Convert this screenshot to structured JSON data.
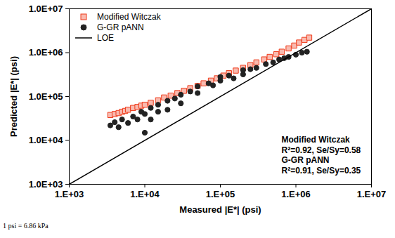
{
  "chart_data": {
    "type": "scatter",
    "xlabel": "Measured |E*| (psi)",
    "ylabel": "Predicted |E*| (psi)",
    "log": true,
    "grid": false,
    "legend": "top-left",
    "xlim": [
      1000,
      10000000
    ],
    "ylim": [
      1000,
      10000000
    ],
    "xticks": [
      {
        "value": 1000,
        "label": "1.E+03"
      },
      {
        "value": 10000,
        "label": "1.E+04"
      },
      {
        "value": 100000,
        "label": "1.E+05"
      },
      {
        "value": 1000000,
        "label": "1.E+06"
      },
      {
        "value": 10000000,
        "label": "1.E+07"
      }
    ],
    "yticks": [
      {
        "value": 1000,
        "label": "1.0E+03"
      },
      {
        "value": 10000,
        "label": "1.0E+04"
      },
      {
        "value": 100000,
        "label": "1.0E+05"
      },
      {
        "value": 1000000,
        "label": "1.0E+06"
      },
      {
        "value": 10000000,
        "label": "1.0E+07"
      }
    ],
    "series": [
      {
        "name": "Modified Witczak",
        "type": "scatter",
        "marker": "square",
        "color": "#ee3a1a",
        "x": [
          3500,
          4000,
          4500,
          5000,
          5500,
          6000,
          7000,
          8000,
          9000,
          10000,
          12000,
          15000,
          18000,
          22000,
          27000,
          33000,
          40000,
          50000,
          60000,
          75000,
          90000,
          110000,
          130000,
          160000,
          200000,
          250000,
          300000,
          380000,
          450000,
          550000,
          650000,
          800000,
          950000,
          1100000,
          1300000,
          1500000
        ],
        "values": [
          38000,
          40000,
          42000,
          45000,
          47000,
          50000,
          55000,
          58000,
          62000,
          65000,
          72000,
          82000,
          95000,
          105000,
          120000,
          135000,
          155000,
          175000,
          200000,
          230000,
          260000,
          300000,
          340000,
          390000,
          450000,
          520000,
          600000,
          700000,
          800000,
          920000,
          1050000,
          1250000,
          1450000,
          1700000,
          1950000,
          2200000
        ]
      },
      {
        "name": "G-GR pANN",
        "type": "scatter",
        "marker": "circle",
        "color": "#222222",
        "x": [
          3500,
          4000,
          4500,
          5000,
          6000,
          7000,
          8000,
          9000,
          10000,
          10000,
          12000,
          12000,
          15000,
          15000,
          20000,
          20000,
          25000,
          30000,
          30000,
          40000,
          50000,
          50000,
          70000,
          80000,
          100000,
          100000,
          130000,
          150000,
          200000,
          200000,
          250000,
          300000,
          400000,
          500000,
          600000,
          700000,
          800000,
          1000000,
          1200000,
          1400000
        ],
        "values": [
          22000,
          26000,
          20000,
          30000,
          25000,
          35000,
          30000,
          45000,
          15000,
          40000,
          30000,
          55000,
          45000,
          65000,
          50000,
          80000,
          90000,
          70000,
          110000,
          130000,
          120000,
          170000,
          200000,
          180000,
          230000,
          280000,
          300000,
          260000,
          320000,
          400000,
          420000,
          450000,
          550000,
          600000,
          700000,
          750000,
          800000,
          900000,
          1000000,
          1050000
        ]
      },
      {
        "name": "LOE",
        "type": "line",
        "line_style": "solid",
        "color": "#000000",
        "x": [
          1000,
          10000000
        ],
        "values": [
          1000,
          10000000
        ]
      }
    ],
    "annotations": [
      "Modified Witczak",
      "R²=0.92, Se/Sy=0.58",
      "G-GR pANN",
      "R²=0.91, Se/Sy=0.35"
    ],
    "caption": "1 psi = 6.86 kPa"
  }
}
